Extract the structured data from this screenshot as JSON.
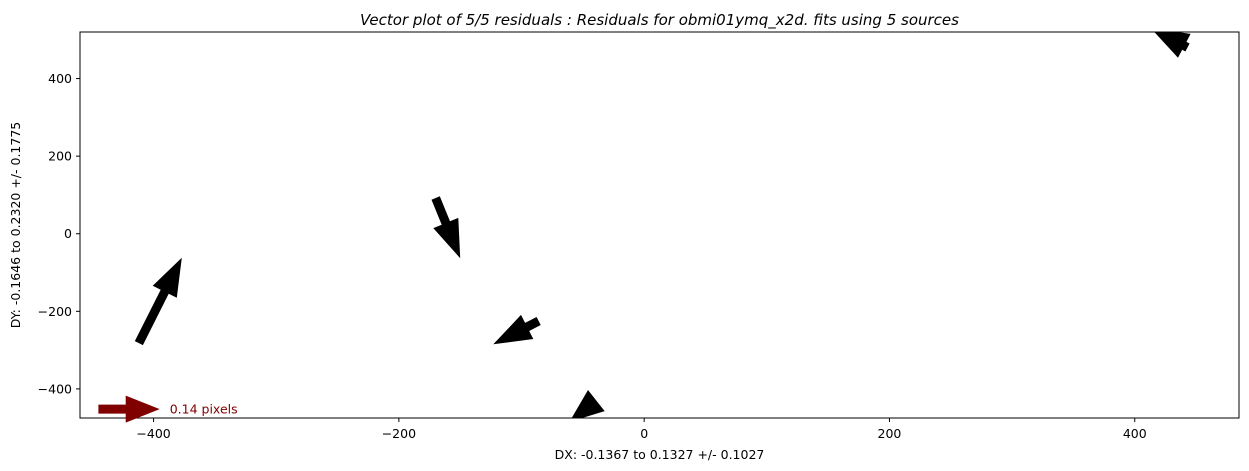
{
  "chart_data": {
    "type": "quiver",
    "title": "Vector plot of 5/5 residuals :  Residuals for obmi01ymq_x2d. fits using 5 sources",
    "xlabel": "DX: -0.1367 to 0.1327 +/- 0.1027",
    "ylabel": "DY: -0.1646 to 0.2320 +/- 0.1775",
    "xlim": [
      -460,
      485
    ],
    "ylim": [
      -475,
      520
    ],
    "x_ticks": [
      -400,
      -200,
      0,
      200,
      400
    ],
    "y_ticks": [
      -400,
      -200,
      0,
      200,
      400
    ],
    "x_tick_labels": [
      "−400",
      "−200",
      "0",
      "200",
      "400"
    ],
    "y_tick_labels": [
      "−400",
      "−200",
      "0",
      "200",
      "400"
    ],
    "grid": false,
    "vectors": [
      {
        "x": -412,
        "y": -282,
        "u": 35,
        "v": 220
      },
      {
        "x": -170,
        "y": 92,
        "u": 20,
        "v": -155
      },
      {
        "x": -86,
        "y": -225,
        "u": -37,
        "v": -60
      },
      {
        "x": -39,
        "y": -430,
        "u": -22,
        "v": -55
      },
      {
        "x": 443,
        "y": 480,
        "u": -30,
        "v": 50
      }
    ],
    "key": {
      "label": "0.14 pixels",
      "x": -445,
      "y": -452,
      "u": 50,
      "v": 0,
      "color": "#800000"
    },
    "arrow_color": "#000000"
  }
}
